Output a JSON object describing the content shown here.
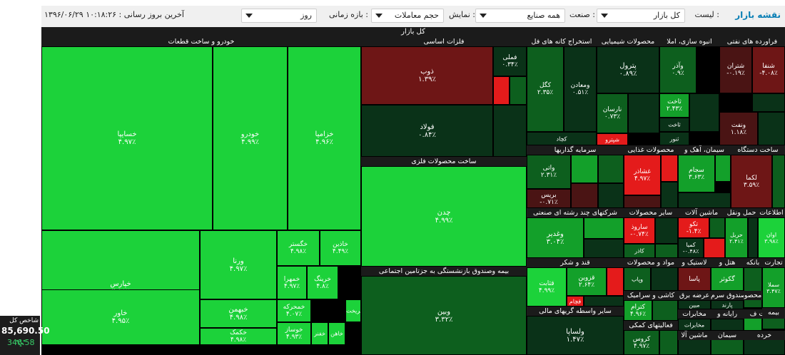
{
  "toolbar": {
    "title": "نقشه بازار",
    "list_label": "لیست :",
    "list_value": "کل بازار",
    "industry_label": "صنعت :",
    "industry_value": "همه صنایع",
    "display_label": "نمایش :",
    "display_value": "حجم معاملات",
    "period_label": "بازه زمانی :",
    "period_value": "روز",
    "last_update": "آخرین بروز رسانی : ۱۰:۱۸:۲۶ ۱۳۹۶/۰۶/۲۹"
  },
  "index": {
    "title": "شاخص کل",
    "value": "85,690.50",
    "change": "346.58"
  },
  "colors": {
    "green": "#1cd23a",
    "mid_green": "#13a02a",
    "dark_green": "#0d5f1e",
    "darkest_green": "#0a3218",
    "red": "#e41b1b",
    "dark_red": "#6e1616",
    "maroon": "#4a1414"
  },
  "treemap": {
    "header": "کل بازار",
    "sectors": [
      {
        "name": "خودرو و ساخت قطعات",
        "cells": [
          {
            "name": "خسایپا",
            "value": "۴.۹۷٪"
          },
          {
            "name": "خودرو",
            "value": "۴.۹۹٪"
          },
          {
            "name": "خزامیا",
            "value": "۴.۹۶٪"
          },
          {
            "name": "خپارس",
            "value": "۴.۹۸٪"
          },
          {
            "name": "ورنا",
            "value": "۴.۹۷٪"
          },
          {
            "name": "خگستر",
            "value": "۴.۹۸٪"
          },
          {
            "name": "خاذین",
            "value": "۴.۴۹٪"
          },
          {
            "name": "خاور",
            "value": "۴.۹۵٪"
          },
          {
            "name": "خبهمن",
            "value": "۴.۹۸٪"
          },
          {
            "name": "خمحرکه",
            "value": "۴.۰۷٪"
          },
          {
            "name": "خکمک",
            "value": "۴.۹۸٪"
          },
          {
            "name": "خمهرا",
            "value": "۴.۹۷٪"
          },
          {
            "name": "خرینگ",
            "value": "۴.۸٪"
          },
          {
            "name": "خوساز",
            "value": "۴.۹۳٪"
          },
          {
            "name": "خفنر",
            "value": ""
          },
          {
            "name": "خاهن",
            "value": ""
          },
          {
            "name": "خریخت",
            "value": ""
          }
        ]
      },
      {
        "name": "فلزات اساسی",
        "cells": [
          {
            "name": "ذوب",
            "value": "۱.۳۹٪"
          },
          {
            "name": "فملی",
            "value": "۰.۳۴٪"
          },
          {
            "name": "فولاد",
            "value": "۰.۸۴٪"
          }
        ]
      },
      {
        "name": "ساخت محصولات فلزی",
        "cells": [
          {
            "name": "چدن",
            "value": "۴.۹۹٪"
          }
        ]
      },
      {
        "name": "بیمه وصندوق بازنشستگی به جزتامین اجتماعی",
        "cells": [
          {
            "name": "وبین",
            "value": "۳.۳۲٪"
          }
        ]
      },
      {
        "name": "استخراج کانه های فل",
        "cells": [
          {
            "name": "کگل",
            "value": "۲.۳۵٪"
          },
          {
            "name": "ومعادن",
            "value": "۰.۵۱٪"
          },
          {
            "name": "کچاد",
            "value": ""
          }
        ]
      },
      {
        "name": "محصولات شیمیایی",
        "cells": [
          {
            "name": "پترول",
            "value": "۰.۸۹٪"
          },
          {
            "name": "نارسان",
            "value": "۰.۷۳٪"
          },
          {
            "name": "شپترو",
            "value": ""
          }
        ]
      },
      {
        "name": "انبوه سازی، املا",
        "cells": [
          {
            "name": "وآذر",
            "value": "۰.۹٪"
          },
          {
            "name": "ثاخت",
            "value": "۲.۴۳٪"
          },
          {
            "name": "ثاخت",
            "value": ""
          },
          {
            "name": "ثنور",
            "value": ""
          }
        ]
      },
      {
        "name": "فراورده های نفتی",
        "cells": [
          {
            "name": "شتران",
            "value": "-۰.۱۹٪"
          },
          {
            "name": "شنفا",
            "value": "-۴.۰۸٪"
          },
          {
            "name": "ونفت",
            "value": "۱.۱۸٪"
          }
        ]
      },
      {
        "name": "سرمایه گذاریها",
        "cells": [
          {
            "name": "واتی",
            "value": "۲.۳۱٪"
          },
          {
            "name": "بریس",
            "value": "-۰.۷۱٪"
          }
        ]
      },
      {
        "name": "محصولات غذایی",
        "cells": [
          {
            "name": "غشاذر",
            "value": "۴.۹۷٪"
          }
        ]
      },
      {
        "name": "سیمان، آهک و",
        "cells": [
          {
            "name": "سجام",
            "value": "۳.۶۳٪"
          }
        ]
      },
      {
        "name": "ساخت دستگاه",
        "cells": [
          {
            "name": "لکما",
            "value": "۳.۵۹٪"
          }
        ]
      },
      {
        "name": "شرکتهای چند رشته ای صنعتی",
        "cells": [
          {
            "name": "وغدیر",
            "value": "۳.۰۴٪"
          }
        ]
      },
      {
        "name": "سایر محصولات",
        "cells": [
          {
            "name": "ساروذ",
            "value": "-۰.۷۴٪"
          },
          {
            "name": "کاذر",
            "value": ""
          }
        ]
      },
      {
        "name": "ماشین آلات",
        "cells": [
          {
            "name": "تکو",
            "value": "-۱.۴٪"
          },
          {
            "name": "کمیا",
            "value": "-۰.۴۸٪"
          }
        ]
      },
      {
        "name": "حمل ونقل",
        "cells": [
          {
            "name": "حریل",
            "value": "۲.۴۱٪"
          }
        ]
      },
      {
        "name": "اطلاعات",
        "cells": [
          {
            "name": "اوان",
            "value": "۳.۹۸٪"
          }
        ]
      },
      {
        "name": "قند و شکر",
        "cells": [
          {
            "name": "قثابت",
            "value": "۴.۹۹٪"
          },
          {
            "name": "قزوین",
            "value": "۲.۶۴٪"
          },
          {
            "name": "قچام",
            "value": ""
          }
        ]
      },
      {
        "name": "مواد و محصولات",
        "cells": [
          {
            "name": "وپاب",
            "value": ""
          }
        ]
      },
      {
        "name": "لاستیک و",
        "cells": [
          {
            "name": "پاسا",
            "value": ""
          }
        ]
      },
      {
        "name": "هتل و",
        "cells": [
          {
            "name": "گکوثر",
            "value": ""
          }
        ]
      },
      {
        "name": "بانکه",
        "cells": []
      },
      {
        "name": "تجارت",
        "cells": [
          {
            "name": "سملا",
            "value": "۳.۴۷٪"
          }
        ]
      },
      {
        "name": "کاشی و سرامیک",
        "cells": [
          {
            "name": "کترام",
            "value": "۴.۹۶٪"
          }
        ]
      },
      {
        "name": "سایر واسطه گریهای مالی",
        "cells": [
          {
            "name": "ولساپا",
            "value": "۱.۴۷٪"
          }
        ]
      },
      {
        "name": "فعالیتهای کمکی",
        "cells": [
          {
            "name": "کروس",
            "value": "۴.۹۷٪"
          }
        ]
      },
      {
        "name": "عرضه برق",
        "cells": [
          {
            "name": "مبین",
            "value": ""
          }
        ]
      },
      {
        "name": "صندوق سرم",
        "cells": [
          {
            "name": "پارند",
            "value": ""
          }
        ]
      },
      {
        "name": "محصو",
        "cells": []
      },
      {
        "name": "مخابرات",
        "cells": [
          {
            "name": "مخابرات",
            "value": ""
          }
        ]
      },
      {
        "name": "ماشین آلا",
        "cells": []
      },
      {
        "name": "رایانه و",
        "cells": []
      },
      {
        "name": "سیمان",
        "cells": []
      },
      {
        "name": "خدمات ف",
        "cells": []
      },
      {
        "name": "خرده",
        "cells": []
      },
      {
        "name": "بیمه",
        "cells": []
      }
    ]
  }
}
